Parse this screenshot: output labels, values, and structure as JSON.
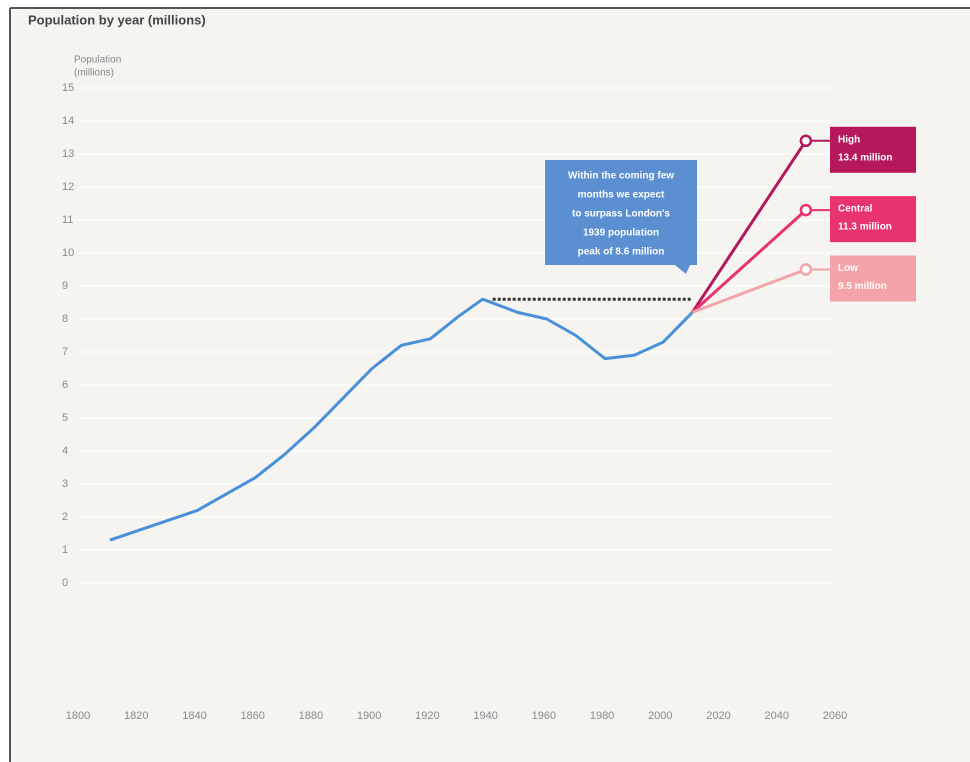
{
  "chart_data": {
    "type": "line",
    "title": "Population by year (millions)",
    "y_label": [
      "Population",
      "(millions)"
    ],
    "x": [
      1811,
      1821,
      1831,
      1841,
      1851,
      1861,
      1871,
      1881,
      1891,
      1901,
      1911,
      1921,
      1931,
      1939,
      1951,
      1961,
      1971,
      1981,
      1991,
      2001,
      2011
    ],
    "series": [
      {
        "color": "#4a90d9",
        "values": [
          1.3,
          1.6,
          1.9,
          2.2,
          2.7,
          3.2,
          3.9,
          4.7,
          5.6,
          6.5,
          7.2,
          7.4,
          8.1,
          8.6,
          8.2,
          8.0,
          7.5,
          6.8,
          6.9,
          7.3,
          8.2
        ]
      },
      {
        "name": "High",
        "color": "#b5195b",
        "x": [
          2011,
          2050
        ],
        "values": [
          8.2,
          13.4
        ],
        "value_labels": [
          null,
          "13.4 million"
        ]
      },
      {
        "name": "Central",
        "color": "#e8336e",
        "x": [
          2011,
          2050
        ],
        "values": [
          8.2,
          11.3
        ],
        "value_labels": [
          null,
          "11.3 million"
        ]
      },
      {
        "name": "Low",
        "color": "#f4a3a8",
        "x": [
          2011,
          2050
        ],
        "values": [
          8.2,
          9.5
        ],
        "value_labels": [
          null,
          "9.5 million"
        ]
      }
    ],
    "reference": {
      "value": 8.6,
      "x": [
        1939,
        2011
      ],
      "color": "#333333"
    },
    "annotation": {
      "lines": [
        "Within the coming few",
        "months we expect",
        "to surpass London's",
        "1939 population",
        "peak of 8.6 million"
      ],
      "color": "#5b8fd1"
    },
    "xlim": [
      1800,
      2060
    ],
    "xticks": [
      1800,
      1820,
      1840,
      1860,
      1880,
      1900,
      1920,
      1940,
      1960,
      1980,
      2000,
      2020,
      2040,
      2060
    ],
    "ylim": [
      0,
      15
    ],
    "yticks": [
      0,
      1,
      2,
      3,
      4,
      5,
      6,
      7,
      8,
      9,
      10,
      11,
      12,
      13,
      14,
      15
    ]
  }
}
